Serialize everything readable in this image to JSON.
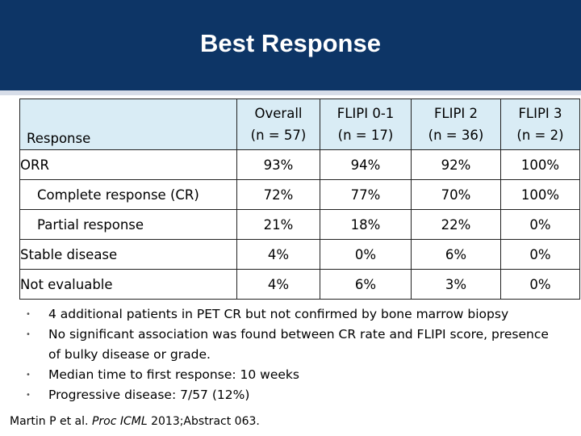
{
  "header": {
    "title": "Best Response"
  },
  "table": {
    "response_header": "Response",
    "columns": [
      {
        "line1": "Overall",
        "line2": "(n = 57)"
      },
      {
        "line1": "FLIPI 0-1",
        "line2": "(n = 17)"
      },
      {
        "line1": "FLIPI 2",
        "line2": "(n = 36)"
      },
      {
        "line1": "FLIPI 3",
        "line2": "(n = 2)"
      }
    ],
    "rows": [
      {
        "label": "ORR",
        "values": [
          "93%",
          "94%",
          "92%",
          "100%"
        ]
      },
      {
        "label": "Complete response (CR)",
        "values": [
          "72%",
          "77%",
          "70%",
          "100%"
        ]
      },
      {
        "label": "Partial response",
        "values": [
          "21%",
          "18%",
          "22%",
          "0%"
        ]
      },
      {
        "label": "Stable disease",
        "values": [
          "4%",
          "0%",
          "6%",
          "0%"
        ]
      },
      {
        "label": "Not evaluable",
        "values": [
          "4%",
          "6%",
          "3%",
          "0%"
        ]
      }
    ]
  },
  "bullets": [
    "4 additional patients in PET CR but not confirmed by bone marrow biopsy",
    "No significant association was found between CR rate and FLIPI score, presence of bulky disease or grade.",
    "Median time to first response: 10 weeks",
    "Progressive disease: 7/57 (12%)"
  ],
  "citation": {
    "authors": "Martin P et al. ",
    "journal": "Proc ICML",
    "rest": " 2013;Abstract 063."
  }
}
